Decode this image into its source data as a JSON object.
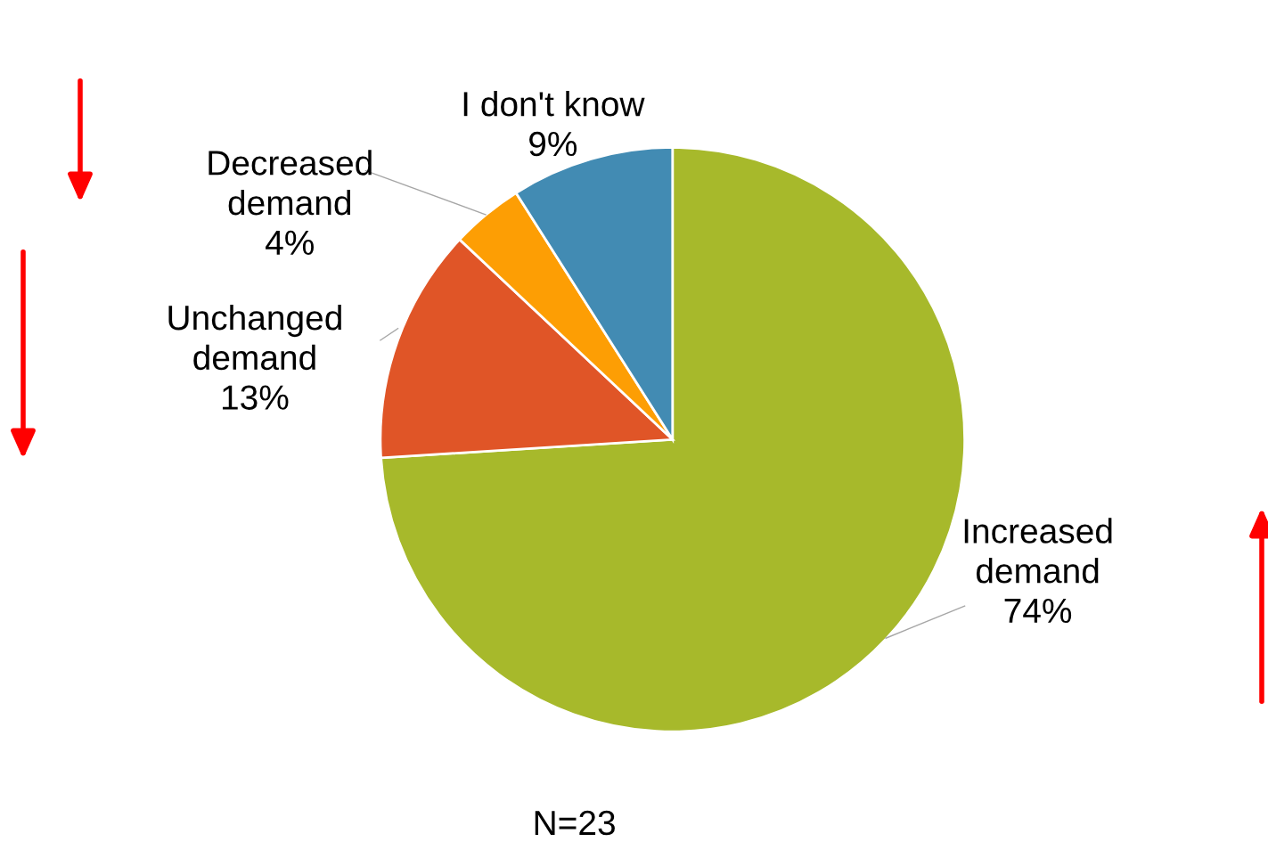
{
  "chart_data": {
    "type": "pie",
    "categories": [
      "Increased demand",
      "Unchanged demand",
      "Decreased demand",
      "I don't know"
    ],
    "values": [
      74,
      13,
      4,
      9
    ],
    "colors": [
      "#a7b92b",
      "#e05527",
      "#fd9e04",
      "#428bb3"
    ],
    "value_labels": [
      "74%",
      "13%",
      "4%",
      "9%"
    ],
    "annotations": [
      "N=23"
    ]
  }
}
